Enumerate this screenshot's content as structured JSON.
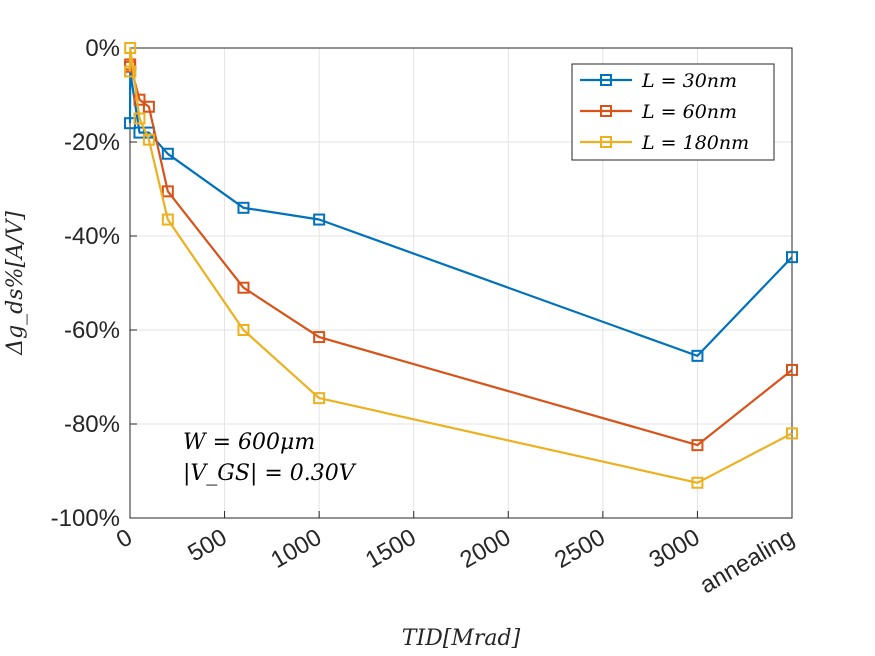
{
  "chart_data": {
    "type": "line",
    "xlabel": "TID[Mrad]",
    "ylabel": "Δg_ds%[A/V]",
    "xlim": [
      0,
      3500
    ],
    "ylim": [
      -100,
      0
    ],
    "x_ticks": [
      {
        "value": 0,
        "label": "0"
      },
      {
        "value": 500,
        "label": "500"
      },
      {
        "value": 1000,
        "label": "1000"
      },
      {
        "value": 1500,
        "label": "1500"
      },
      {
        "value": 2000,
        "label": "2000"
      },
      {
        "value": 2500,
        "label": "2500"
      },
      {
        "value": 3000,
        "label": "3000"
      },
      {
        "value": 3500,
        "label": "annealing"
      }
    ],
    "y_ticks": [
      {
        "value": 0,
        "label": "0%"
      },
      {
        "value": -20,
        "label": "-20%"
      },
      {
        "value": -40,
        "label": "-40%"
      },
      {
        "value": -60,
        "label": "-60%"
      },
      {
        "value": -80,
        "label": "-80%"
      },
      {
        "value": -100,
        "label": "-100%"
      }
    ],
    "grid": true,
    "legend_position": "top-right",
    "x": [
      0,
      1,
      50,
      100,
      200,
      600,
      1000,
      3000,
      3500
    ],
    "series": [
      {
        "name": "L = 30nm",
        "color": "#0072BD",
        "values": [
          -16,
          -5,
          -18,
          -18,
          -22.5,
          -34,
          -36.5,
          -65.5,
          -44.5
        ]
      },
      {
        "name": "L = 60nm",
        "color": "#D95319",
        "values": [
          -4,
          -3.5,
          -11,
          -12.5,
          -30.5,
          -51,
          -61.5,
          -84.5,
          -68.5
        ]
      },
      {
        "name": "L = 180nm",
        "color": "#EDB120",
        "values": [
          -5,
          0,
          -15,
          -19.5,
          -36.5,
          -60,
          -74.5,
          -92.5,
          -82
        ]
      }
    ],
    "annotations": [
      "W = 600μm",
      "|V_GS| = 0.30V"
    ]
  }
}
